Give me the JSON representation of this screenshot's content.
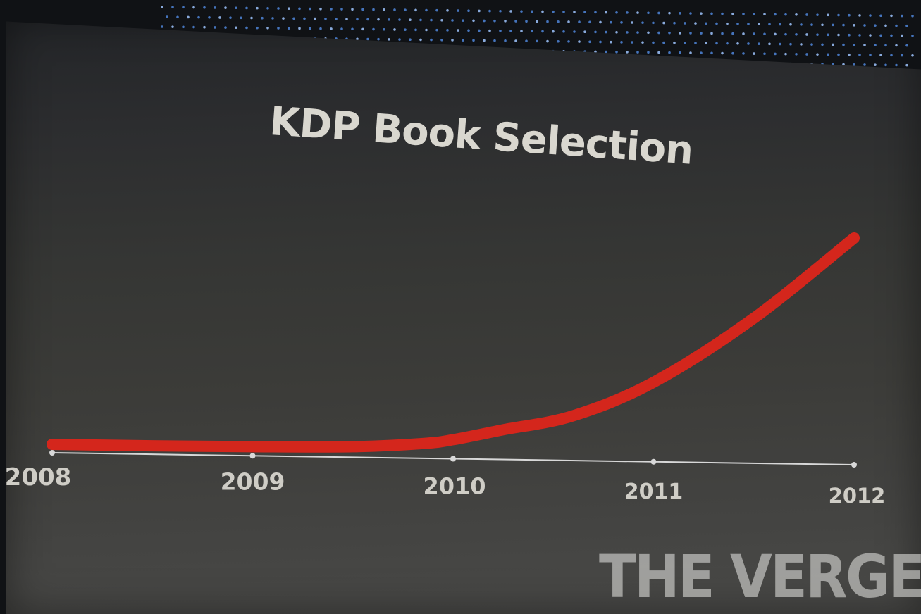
{
  "slide": {
    "title": "KDP Book Selection",
    "watermark": "THE VERGE"
  },
  "colors": {
    "line": "#d4261c",
    "axis": "#d8d8d8",
    "text": "#cfcdc6"
  },
  "chart_data": {
    "type": "line",
    "title": "KDP Book Selection",
    "xlabel": "",
    "ylabel": "",
    "x_ticks": [
      "2008",
      "2009",
      "2010",
      "2011",
      "2012"
    ],
    "grid": false,
    "legend": "none",
    "ylim": [
      0,
      100
    ],
    "series": [
      {
        "x": [
          2008.0,
          2008.5,
          2009.0,
          2009.5,
          2009.85,
          2010.0,
          2010.25,
          2010.6,
          2011.0,
          2011.5,
          2012.0
        ],
        "y": [
          0,
          0,
          0.3,
          1,
          3,
          5,
          10,
          17,
          33,
          63,
          100
        ]
      }
    ]
  }
}
